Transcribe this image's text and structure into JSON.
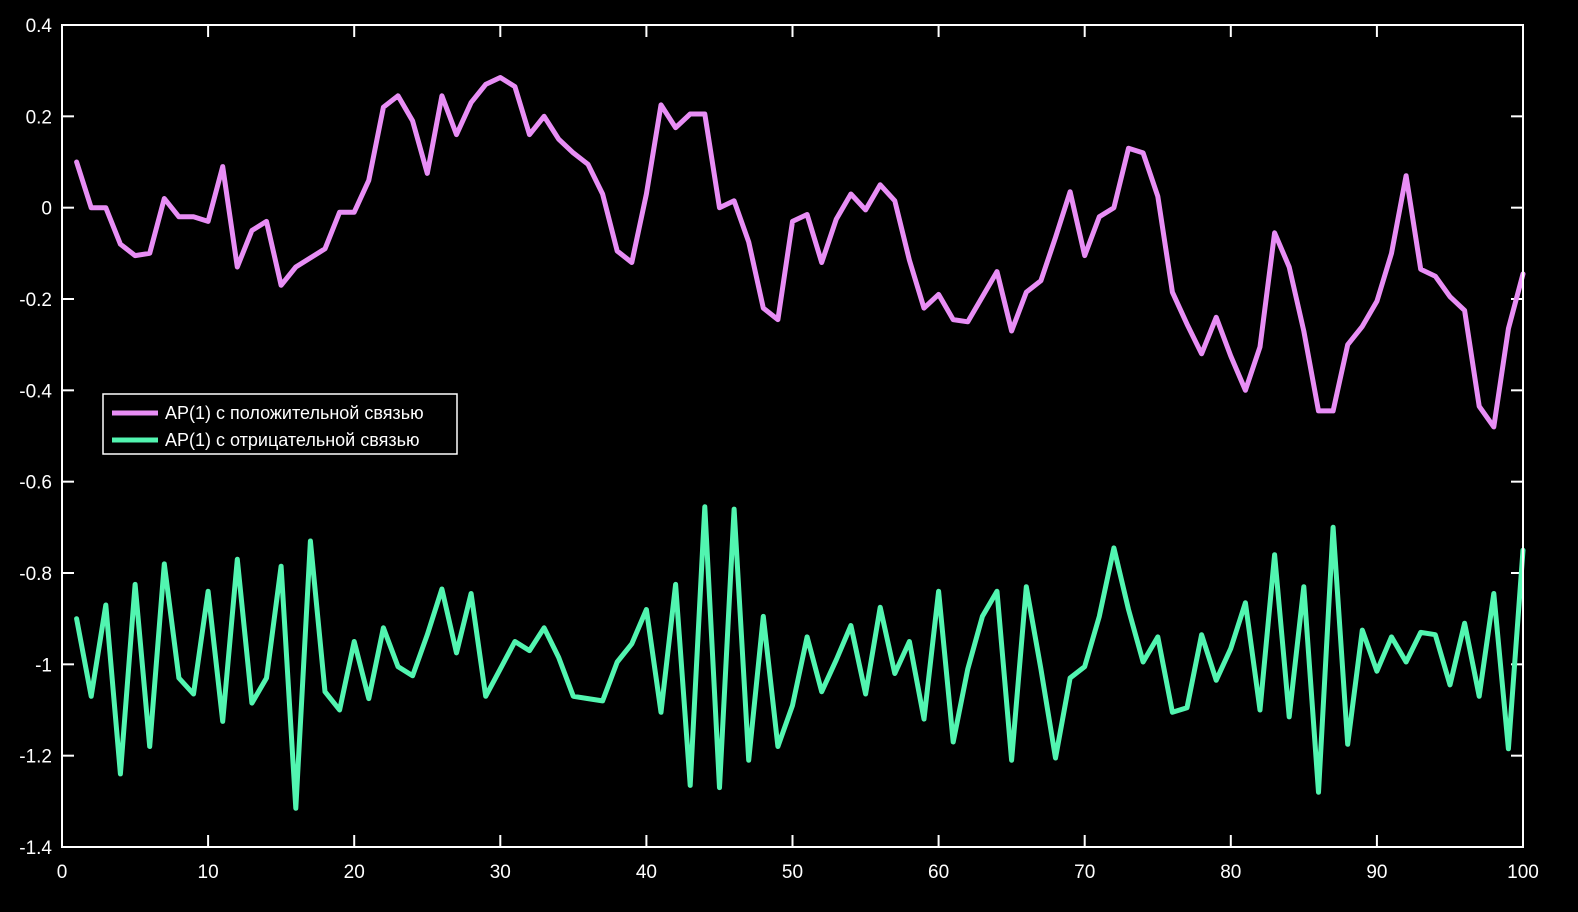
{
  "chart_data": {
    "type": "line",
    "xlim": [
      0,
      100
    ],
    "ylim": [
      -1.4,
      0.4
    ],
    "xticks": [
      "0",
      "10",
      "20",
      "30",
      "40",
      "50",
      "60",
      "70",
      "80",
      "90",
      "100"
    ],
    "yticks": [
      "0.4",
      "0.2",
      "0",
      "-0.2",
      "-0.4",
      "-0.6",
      "-0.8",
      "-1",
      "-1.2",
      "-1.4"
    ],
    "grid": false,
    "background": "#000000",
    "axis_color": "#ffffff",
    "legend_position": "center-left",
    "x": [
      1,
      2,
      3,
      4,
      5,
      6,
      7,
      8,
      9,
      10,
      11,
      12,
      13,
      14,
      15,
      16,
      17,
      18,
      19,
      20,
      21,
      22,
      23,
      24,
      25,
      26,
      27,
      28,
      29,
      30,
      31,
      32,
      33,
      34,
      35,
      36,
      37,
      38,
      39,
      40,
      41,
      42,
      43,
      44,
      45,
      46,
      47,
      48,
      49,
      50,
      51,
      52,
      53,
      54,
      55,
      56,
      57,
      58,
      59,
      60,
      61,
      62,
      63,
      64,
      65,
      66,
      67,
      68,
      69,
      70,
      71,
      72,
      73,
      74,
      75,
      76,
      77,
      78,
      79,
      80,
      81,
      82,
      83,
      84,
      85,
      86,
      87,
      88,
      89,
      90,
      91,
      92,
      93,
      94,
      95,
      96,
      97,
      98,
      99,
      100
    ],
    "series": [
      {
        "name": "АР(1) с положительной связью",
        "color": "#e88ef5",
        "values": [
          0.1,
          0.0,
          0.0,
          -0.08,
          -0.105,
          -0.1,
          0.02,
          -0.02,
          -0.02,
          -0.03,
          0.09,
          -0.13,
          -0.05,
          -0.03,
          -0.17,
          -0.13,
          -0.11,
          -0.09,
          -0.01,
          -0.01,
          0.06,
          0.22,
          0.245,
          0.19,
          0.075,
          0.245,
          0.16,
          0.23,
          0.27,
          0.285,
          0.265,
          0.16,
          0.2,
          0.15,
          0.12,
          0.095,
          0.03,
          -0.095,
          -0.12,
          0.03,
          0.225,
          0.175,
          0.205,
          0.205,
          0.0,
          0.015,
          -0.075,
          -0.22,
          -0.245,
          -0.03,
          -0.015,
          -0.12,
          -0.025,
          0.03,
          -0.005,
          0.05,
          0.015,
          -0.115,
          -0.22,
          -0.19,
          -0.245,
          -0.25,
          -0.195,
          -0.14,
          -0.27,
          -0.185,
          -0.16,
          -0.065,
          0.035,
          -0.105,
          -0.02,
          0.0,
          0.13,
          0.12,
          0.025,
          -0.185,
          -0.255,
          -0.32,
          -0.24,
          -0.325,
          -0.4,
          -0.305,
          -0.055,
          -0.13,
          -0.27,
          -0.445,
          -0.445,
          -0.3,
          -0.26,
          -0.205,
          -0.1,
          0.07,
          -0.135,
          -0.15,
          -0.195,
          -0.225,
          -0.435,
          -0.48,
          -0.265,
          -0.145
        ]
      },
      {
        "name": "АР(1) с отрицательной связью",
        "color": "#52f5b0",
        "values": [
          -0.9,
          -1.07,
          -0.87,
          -1.24,
          -0.825,
          -1.18,
          -0.78,
          -1.03,
          -1.065,
          -0.84,
          -1.125,
          -0.77,
          -1.085,
          -1.03,
          -0.785,
          -1.315,
          -0.73,
          -1.06,
          -1.1,
          -0.95,
          -1.075,
          -0.92,
          -1.005,
          -1.025,
          -0.935,
          -0.835,
          -0.975,
          -0.845,
          -1.07,
          -1.01,
          -0.95,
          -0.97,
          -0.92,
          -0.985,
          -1.07,
          -1.075,
          -1.08,
          -0.995,
          -0.955,
          -0.88,
          -1.105,
          -0.825,
          -1.265,
          -0.655,
          -1.27,
          -0.66,
          -1.21,
          -0.895,
          -1.18,
          -1.09,
          -0.94,
          -1.06,
          -0.99,
          -0.915,
          -1.065,
          -0.875,
          -1.02,
          -0.95,
          -1.12,
          -0.84,
          -1.17,
          -1.01,
          -0.895,
          -0.84,
          -1.21,
          -0.83,
          -1.01,
          -1.205,
          -1.03,
          -1.005,
          -0.895,
          -0.745,
          -0.88,
          -0.995,
          -0.94,
          -1.105,
          -1.095,
          -0.935,
          -1.035,
          -0.965,
          -0.865,
          -1.1,
          -0.76,
          -1.115,
          -0.83,
          -1.28,
          -0.7,
          -1.175,
          -0.925,
          -1.015,
          -0.94,
          -0.995,
          -0.93,
          -0.935,
          -1.045,
          -0.91,
          -1.07,
          -0.845,
          -1.185,
          -0.75
        ]
      }
    ]
  }
}
